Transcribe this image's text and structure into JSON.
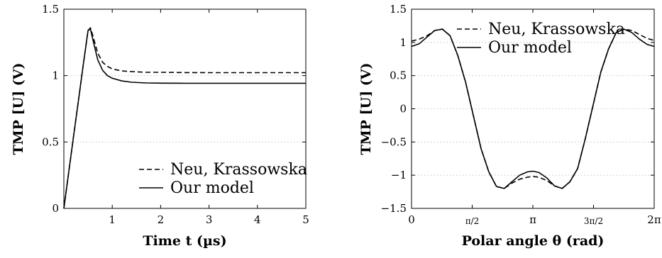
{
  "chart_data": [
    {
      "type": "line",
      "title": "",
      "xlabel": "Time t (µs)",
      "ylabel": "TMP [U] (V)",
      "xlim": [
        0,
        5
      ],
      "ylim": [
        0,
        1.5
      ],
      "x_ticks": [
        1,
        2,
        3,
        4,
        5
      ],
      "x_tick_labels": [
        "1",
        "2",
        "3",
        "4",
        "5"
      ],
      "y_ticks": [
        0,
        0.5,
        1,
        1.5
      ],
      "y_tick_labels": [
        "0",
        "0.5",
        "1",
        "1.5"
      ],
      "grid": "horizontal dotted",
      "legend_position": "bottom-right",
      "series": [
        {
          "name": "Neu, Krassowska",
          "style": "dashed",
          "x": [
            0,
            0.1,
            0.2,
            0.3,
            0.4,
            0.5,
            0.55,
            0.6,
            0.7,
            0.8,
            0.9,
            1.0,
            1.2,
            1.4,
            1.7,
            2.0,
            2.5,
            3.0,
            4.0,
            5.0
          ],
          "y": [
            0,
            0.27,
            0.54,
            0.81,
            1.08,
            1.34,
            1.36,
            1.3,
            1.17,
            1.1,
            1.07,
            1.05,
            1.035,
            1.03,
            1.025,
            1.025,
            1.023,
            1.022,
            1.022,
            1.022
          ]
        },
        {
          "name": "Our model",
          "style": "solid",
          "x": [
            0,
            0.1,
            0.2,
            0.3,
            0.4,
            0.5,
            0.55,
            0.6,
            0.7,
            0.8,
            0.9,
            1.0,
            1.2,
            1.4,
            1.7,
            2.0,
            2.5,
            3.0,
            4.0,
            5.0
          ],
          "y": [
            0,
            0.27,
            0.54,
            0.81,
            1.08,
            1.34,
            1.35,
            1.27,
            1.12,
            1.04,
            1.0,
            0.98,
            0.96,
            0.95,
            0.945,
            0.943,
            0.942,
            0.942,
            0.942,
            0.942
          ]
        }
      ]
    },
    {
      "type": "line",
      "title": "",
      "xlabel": "Polar angle θ (rad)",
      "ylabel": "TMP [U] (V)",
      "xlim": [
        0,
        6.2832
      ],
      "ylim": [
        -1.5,
        1.5
      ],
      "x_ticks": [
        0,
        1.5708,
        3.1416,
        4.7124,
        6.2832
      ],
      "x_tick_labels": [
        "0",
        "π/2",
        "π",
        "3π/2",
        "2π"
      ],
      "y_ticks": [
        -1.5,
        -1,
        -0.5,
        0,
        0.5,
        1,
        1.5
      ],
      "y_tick_labels": [
        "−1.5",
        "−1",
        "−0.5",
        "0",
        "0.5",
        "1",
        "1.5"
      ],
      "grid": "horizontal dotted",
      "legend_position": "top-right",
      "series": [
        {
          "name": "Neu, Krassowska",
          "style": "dashed",
          "x": [
            0,
            0.2,
            0.4,
            0.6,
            0.8,
            1.0,
            1.2,
            1.4,
            1.6,
            1.8,
            2.0,
            2.2,
            2.4,
            2.6,
            2.8,
            3.0,
            3.1416,
            3.3,
            3.5,
            3.7,
            3.9,
            4.1,
            4.3,
            4.5,
            4.7,
            4.9,
            5.1,
            5.3,
            5.5,
            5.7,
            5.9,
            6.1,
            6.2832
          ],
          "y": [
            1.02,
            1.05,
            1.1,
            1.18,
            1.2,
            1.1,
            0.8,
            0.4,
            -0.1,
            -0.6,
            -0.95,
            -1.17,
            -1.2,
            -1.12,
            -1.06,
            -1.03,
            -1.02,
            -1.03,
            -1.08,
            -1.16,
            -1.2,
            -1.1,
            -0.9,
            -0.45,
            0.05,
            0.55,
            0.9,
            1.15,
            1.2,
            1.18,
            1.12,
            1.06,
            1.03
          ]
        },
        {
          "name": "Our model",
          "style": "solid",
          "x": [
            0,
            0.2,
            0.4,
            0.6,
            0.8,
            1.0,
            1.2,
            1.4,
            1.6,
            1.8,
            2.0,
            2.2,
            2.4,
            2.6,
            2.8,
            3.0,
            3.1416,
            3.3,
            3.5,
            3.7,
            3.9,
            4.1,
            4.3,
            4.5,
            4.7,
            4.9,
            5.1,
            5.3,
            5.5,
            5.7,
            5.9,
            6.1,
            6.2832
          ],
          "y": [
            0.94,
            0.98,
            1.08,
            1.18,
            1.2,
            1.1,
            0.8,
            0.4,
            -0.1,
            -0.6,
            -0.95,
            -1.17,
            -1.2,
            -1.1,
            -1.0,
            -0.95,
            -0.94,
            -0.96,
            -1.04,
            -1.16,
            -1.2,
            -1.1,
            -0.9,
            -0.45,
            0.05,
            0.55,
            0.9,
            1.15,
            1.2,
            1.15,
            1.05,
            0.97,
            0.94
          ]
        }
      ]
    }
  ]
}
